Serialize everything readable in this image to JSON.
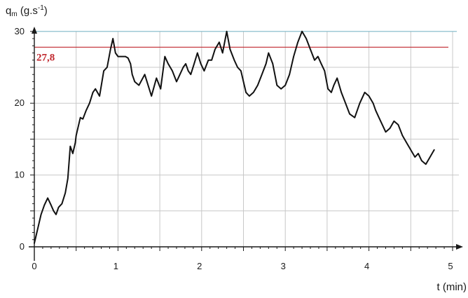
{
  "chart_data": {
    "type": "line",
    "ylabel_main": "q",
    "ylabel_sub": "m",
    "ylabel_unit_base": " (g.s",
    "ylabel_unit_exp": "-1",
    "ylabel_unit_close": ")",
    "xlabel": "t (min)",
    "xlim": [
      0,
      5
    ],
    "ylim": [
      0,
      30
    ],
    "x_ticks": [
      {
        "value": 0,
        "label": "0"
      },
      {
        "value": 1,
        "label": "1"
      },
      {
        "value": 2,
        "label": "2"
      },
      {
        "value": 3,
        "label": "3"
      },
      {
        "value": 4,
        "label": "4"
      },
      {
        "value": 5,
        "label": "5"
      }
    ],
    "y_ticks": [
      {
        "value": 0,
        "label": "0"
      },
      {
        "value": 10,
        "label": "10"
      },
      {
        "value": 20,
        "label": "20"
      },
      {
        "value": 30,
        "label": "30"
      }
    ],
    "reference_line": {
      "value": 27.8,
      "label": "27,8",
      "color": "#c0272d"
    },
    "grid": true,
    "colors": {
      "line": "#111111",
      "grid": "#c8c8c8",
      "top_border": "#7fb8c8",
      "axis": "#1a1a1a"
    },
    "series": [
      {
        "x": [
          0,
          0.02,
          0.05,
          0.08,
          0.12,
          0.16,
          0.2,
          0.23,
          0.26,
          0.29,
          0.33,
          0.37,
          0.4,
          0.43,
          0.46,
          0.49,
          0.5,
          0.52,
          0.55,
          0.58,
          0.62,
          0.66,
          0.7,
          0.73,
          0.78,
          0.83,
          0.87,
          0.91,
          0.94,
          0.97,
          1.0,
          1.03,
          1.06,
          1.09,
          1.12,
          1.15,
          1.17,
          1.2,
          1.25,
          1.32,
          1.4,
          1.46,
          1.51,
          1.56,
          1.6,
          1.65,
          1.7,
          1.74,
          1.78,
          1.81,
          1.84,
          1.87,
          1.91,
          1.95,
          1.99,
          2.03,
          2.08,
          2.12,
          2.16,
          2.21,
          2.25,
          2.3,
          2.34,
          2.39,
          2.43,
          2.47,
          2.5,
          2.53,
          2.57,
          2.62,
          2.67,
          2.72,
          2.77,
          2.8,
          2.85,
          2.9,
          2.95,
          3.0,
          3.05,
          3.1,
          3.15,
          3.2,
          3.25,
          3.3,
          3.35,
          3.39,
          3.43,
          3.47,
          3.51,
          3.55,
          3.58,
          3.62,
          3.67,
          3.72,
          3.77,
          3.83,
          3.89,
          3.95,
          4.0,
          4.05,
          4.08,
          4.12,
          4.16,
          4.2,
          4.25,
          4.3,
          4.35,
          4.4,
          4.45,
          4.5,
          4.55,
          4.59,
          4.63,
          4.68,
          4.73,
          4.78
        ],
        "values": [
          0.5,
          1.5,
          3,
          4.5,
          5.8,
          6.8,
          5.8,
          5,
          4.5,
          5.5,
          6,
          7.5,
          9.5,
          14,
          13,
          14.5,
          15.5,
          16.5,
          18,
          17.8,
          19,
          20,
          21.5,
          22,
          21,
          24.5,
          25,
          27.5,
          29,
          27,
          26.5,
          26.5,
          26.5,
          26.5,
          26.3,
          25.5,
          24,
          23,
          22.5,
          24,
          21,
          23.5,
          22,
          26.5,
          25.5,
          24.5,
          23,
          24,
          25,
          25.5,
          24.5,
          24,
          25.5,
          27,
          25.5,
          24.5,
          26,
          26,
          27.5,
          28.5,
          27,
          30,
          27.5,
          26,
          25,
          24.5,
          23,
          21.5,
          21,
          21.5,
          22.5,
          24,
          25.5,
          27,
          25.5,
          22.5,
          22,
          22.5,
          24,
          26.5,
          28.5,
          30,
          29,
          27.5,
          26,
          26.5,
          25.5,
          24.5,
          22,
          21.5,
          22.5,
          23.5,
          21.5,
          20,
          18.5,
          18,
          20,
          21.5,
          21,
          20,
          19,
          18,
          17,
          16,
          16.5,
          17.5,
          17,
          15.5,
          14.5,
          13.5,
          12.5,
          13,
          12,
          11.5,
          12.5,
          13.5
        ]
      }
    ]
  }
}
